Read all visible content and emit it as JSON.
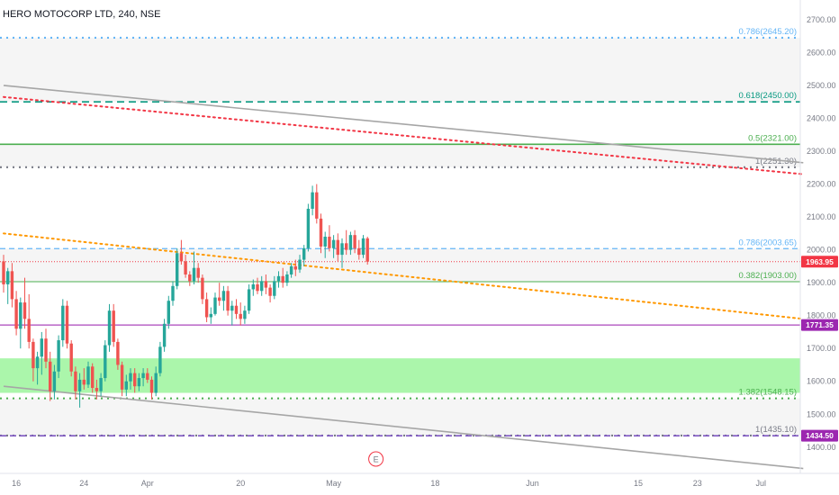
{
  "chart_data": {
    "type": "candlestick",
    "title": "HERO MOTOCORP LTD, 240, NSE",
    "ylim": [
      1320,
      2760
    ],
    "y_ticks": [
      1400,
      1500,
      1600,
      1700,
      1800,
      1900,
      2000,
      2100,
      2200,
      2300,
      2400,
      2500,
      2600,
      2700
    ],
    "y_tick_labels": [
      "1400.00",
      "1500.00",
      "1600.00",
      "1700.00",
      "1800.00",
      "1900.00",
      "2000.00",
      "2100.00",
      "2200.00",
      "2300.00",
      "2400.00",
      "2500.00",
      "2600.00",
      "2700.00"
    ],
    "x_ticks": [
      {
        "label": "16",
        "bar": 3
      },
      {
        "label": "24",
        "bar": 19
      },
      {
        "label": "Apr",
        "bar": 34
      },
      {
        "label": "20",
        "bar": 56
      },
      {
        "label": "May",
        "bar": 78
      },
      {
        "label": "18",
        "bar": 102
      },
      {
        "label": "Jun",
        "bar": 125
      },
      {
        "label": "15",
        "bar": 150
      },
      {
        "label": "23",
        "bar": 164
      },
      {
        "label": "Jul",
        "bar": 179
      }
    ],
    "candles": [
      [
        1965,
        1985,
        1870,
        1895
      ],
      [
        1895,
        1945,
        1835,
        1935
      ],
      [
        1935,
        1960,
        1825,
        1850
      ],
      [
        1850,
        1875,
        1740,
        1760
      ],
      [
        1760,
        1855,
        1700,
        1840
      ],
      [
        1840,
        1915,
        1760,
        1790
      ],
      [
        1790,
        1865,
        1700,
        1720
      ],
      [
        1720,
        1730,
        1600,
        1640
      ],
      [
        1640,
        1690,
        1590,
        1675
      ],
      [
        1675,
        1750,
        1620,
        1730
      ],
      [
        1730,
        1760,
        1640,
        1660
      ],
      [
        1660,
        1690,
        1540,
        1570
      ],
      [
        1570,
        1650,
        1545,
        1630
      ],
      [
        1630,
        1740,
        1610,
        1725
      ],
      [
        1725,
        1850,
        1705,
        1830
      ],
      [
        1830,
        1845,
        1700,
        1715
      ],
      [
        1715,
        1725,
        1615,
        1630
      ],
      [
        1630,
        1645,
        1545,
        1570
      ],
      [
        1570,
        1625,
        1520,
        1605
      ],
      [
        1605,
        1640,
        1575,
        1590
      ],
      [
        1590,
        1660,
        1580,
        1645
      ],
      [
        1645,
        1655,
        1565,
        1580
      ],
      [
        1580,
        1605,
        1545,
        1570
      ],
      [
        1570,
        1625,
        1555,
        1610
      ],
      [
        1610,
        1725,
        1600,
        1710
      ],
      [
        1710,
        1835,
        1690,
        1815
      ],
      [
        1815,
        1835,
        1705,
        1720
      ],
      [
        1720,
        1730,
        1635,
        1650
      ],
      [
        1650,
        1660,
        1555,
        1575
      ],
      [
        1575,
        1620,
        1555,
        1600
      ],
      [
        1600,
        1640,
        1575,
        1625
      ],
      [
        1625,
        1640,
        1565,
        1585
      ],
      [
        1585,
        1625,
        1570,
        1610
      ],
      [
        1610,
        1640,
        1585,
        1625
      ],
      [
        1625,
        1640,
        1595,
        1605
      ],
      [
        1605,
        1615,
        1545,
        1565
      ],
      [
        1565,
        1645,
        1555,
        1625
      ],
      [
        1625,
        1720,
        1615,
        1705
      ],
      [
        1705,
        1790,
        1690,
        1775
      ],
      [
        1775,
        1860,
        1760,
        1845
      ],
      [
        1845,
        1905,
        1830,
        1890
      ],
      [
        1890,
        2005,
        1880,
        1990
      ],
      [
        1990,
        2030,
        1955,
        1965
      ],
      [
        1965,
        1985,
        1915,
        1925
      ],
      [
        1925,
        1935,
        1890,
        1905
      ],
      [
        1905,
        1995,
        1895,
        1945
      ],
      [
        1945,
        1960,
        1900,
        1915
      ],
      [
        1915,
        1925,
        1835,
        1850
      ],
      [
        1850,
        1870,
        1780,
        1795
      ],
      [
        1795,
        1825,
        1775,
        1805
      ],
      [
        1805,
        1870,
        1800,
        1855
      ],
      [
        1855,
        1900,
        1830,
        1845
      ],
      [
        1845,
        1890,
        1815,
        1875
      ],
      [
        1875,
        1890,
        1800,
        1815
      ],
      [
        1815,
        1845,
        1770,
        1830
      ],
      [
        1830,
        1850,
        1790,
        1805
      ],
      [
        1805,
        1840,
        1770,
        1790
      ],
      [
        1790,
        1830,
        1775,
        1815
      ],
      [
        1815,
        1895,
        1805,
        1880
      ],
      [
        1880,
        1910,
        1860,
        1895
      ],
      [
        1895,
        1915,
        1865,
        1875
      ],
      [
        1875,
        1920,
        1860,
        1905
      ],
      [
        1905,
        1925,
        1865,
        1885
      ],
      [
        1885,
        1895,
        1840,
        1860
      ],
      [
        1860,
        1920,
        1850,
        1905
      ],
      [
        1905,
        1935,
        1885,
        1920
      ],
      [
        1920,
        1945,
        1885,
        1900
      ],
      [
        1900,
        1935,
        1890,
        1925
      ],
      [
        1925,
        1960,
        1915,
        1950
      ],
      [
        1950,
        1970,
        1920,
        1940
      ],
      [
        1940,
        1985,
        1930,
        1970
      ],
      [
        1970,
        2015,
        1950,
        2005
      ],
      [
        2005,
        2140,
        1995,
        2125
      ],
      [
        2125,
        2195,
        2105,
        2175
      ],
      [
        2175,
        2200,
        2080,
        2095
      ],
      [
        2095,
        2110,
        1990,
        2010
      ],
      [
        2010,
        2055,
        1975,
        2040
      ],
      [
        2040,
        2075,
        1995,
        2005
      ],
      [
        2005,
        2045,
        1975,
        2030
      ],
      [
        2030,
        2050,
        1965,
        1985
      ],
      [
        1985,
        2035,
        1945,
        2020
      ],
      [
        2020,
        2060,
        1985,
        2000
      ],
      [
        2000,
        2055,
        1985,
        2045
      ],
      [
        2045,
        2060,
        1990,
        2005
      ],
      [
        2005,
        2030,
        1970,
        1985
      ],
      [
        1985,
        2045,
        1975,
        2035
      ],
      [
        2035,
        2040,
        1955,
        1964
      ]
    ],
    "horizontal_levels": [
      {
        "label": "0.786(2645.20)",
        "value": 2645.2,
        "color": "#64b5f6"
      },
      {
        "label": "0.618(2450.00)",
        "value": 2450.0,
        "color": "#089981"
      },
      {
        "label": "0.5(2321.00)",
        "value": 2321.0,
        "color": "#4caf50"
      },
      {
        "label": "1(2251.30)",
        "value": 2251.3,
        "color": "#787b86"
      },
      {
        "label": "0.786(2003.65)",
        "value": 2003.65,
        "color": "#64b5f6"
      },
      {
        "label": "0.382(1903.00)",
        "value": 1903.0,
        "color": "#4caf50"
      },
      {
        "label": "1.382(1548.15)",
        "value": 1548.15,
        "color": "#4caf50"
      },
      {
        "label": "1(1435.10)",
        "value": 1435.1,
        "color": "#787b86"
      }
    ],
    "price_tags": [
      {
        "label": "1963.95",
        "value": 1963.95,
        "color": "#f23645"
      },
      {
        "label": "1771.35",
        "value": 1771.35,
        "color": "#9c27b0"
      },
      {
        "label": "1434.50",
        "value": 1434.5,
        "color": "#9c27b0"
      }
    ],
    "horizontal_lines": [
      {
        "value": 1771.35,
        "color": "#ab47bc"
      },
      {
        "value": 1434.5,
        "color": "#7e57c2"
      },
      {
        "value": 1963.95,
        "color": "#f23645"
      }
    ],
    "zones": [
      {
        "from": 1565,
        "to": 1670,
        "color": "#9cf59c"
      }
    ],
    "trend_lines": [
      {
        "bar_from": 0,
        "value_from": 2500,
        "bar_to": 189,
        "value_to": 2265,
        "color": "#a6a6a6",
        "style": "solid"
      },
      {
        "bar_from": 0,
        "value_from": 1585,
        "bar_to": 189,
        "value_to": 1335,
        "color": "#a6a6a6",
        "style": "solid"
      },
      {
        "bar_from": 0,
        "value_from": 2465,
        "bar_to": 189,
        "value_to": 2230,
        "color": "#f23645",
        "style": "dotted"
      },
      {
        "bar_from": 0,
        "value_from": 2050,
        "bar_to": 189,
        "value_to": 1790,
        "color": "#ff9800",
        "style": "dotted"
      }
    ],
    "earnings_marker": {
      "label": "E",
      "bar": 88
    }
  }
}
